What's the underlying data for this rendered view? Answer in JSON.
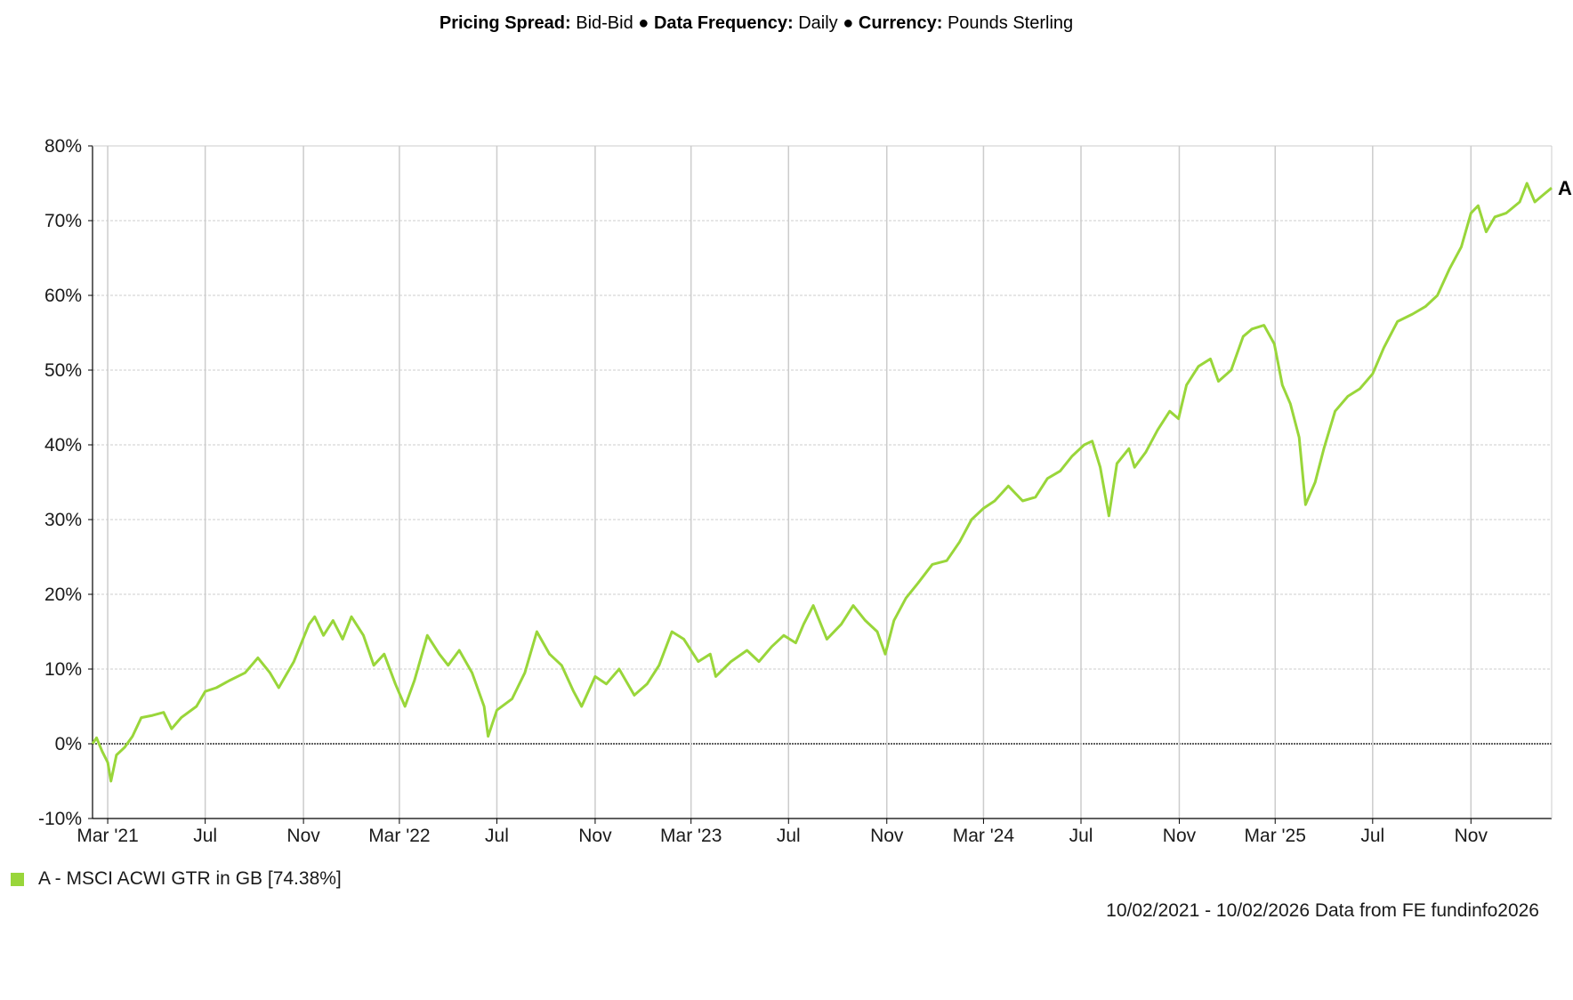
{
  "header": {
    "pricing_spread_label": "Pricing Spread:",
    "pricing_spread_value": "Bid-Bid",
    "data_frequency_label": "Data Frequency:",
    "data_frequency_value": "Daily",
    "currency_label": "Currency:",
    "currency_value": "Pounds Sterling",
    "separator": "●"
  },
  "legend": {
    "text": "A - MSCI ACWI GTR in GB [74.38%]"
  },
  "footer": {
    "text": "10/02/2021 - 10/02/2026 Data from FE fundinfo2026"
  },
  "colors": {
    "series": "#99d63a",
    "grid": "#cccccc",
    "zero_line": "#000000",
    "axis": "#000000"
  },
  "chart_data": {
    "type": "line",
    "title": "",
    "xlabel": "",
    "ylabel": "",
    "x_range": [
      "2021-02-10",
      "2026-02-10"
    ],
    "ylim": [
      -10,
      80
    ],
    "y_ticks": [
      80,
      70,
      60,
      50,
      40,
      30,
      20,
      10,
      0,
      -10
    ],
    "y_tick_labels": [
      "80%",
      "70%",
      "60%",
      "50%",
      "40%",
      "30%",
      "20%",
      "10%",
      "0%",
      "-10%"
    ],
    "x_ticks": [
      {
        "date": "2021-03-01",
        "label": "Mar '21"
      },
      {
        "date": "2021-07-01",
        "label": "Jul"
      },
      {
        "date": "2021-11-01",
        "label": "Nov"
      },
      {
        "date": "2022-03-01",
        "label": "Mar '22"
      },
      {
        "date": "2022-07-01",
        "label": "Jul"
      },
      {
        "date": "2022-11-01",
        "label": "Nov"
      },
      {
        "date": "2023-03-01",
        "label": "Mar '23"
      },
      {
        "date": "2023-07-01",
        "label": "Jul"
      },
      {
        "date": "2023-11-01",
        "label": "Nov"
      },
      {
        "date": "2024-03-01",
        "label": "Mar '24"
      },
      {
        "date": "2024-07-01",
        "label": "Jul"
      },
      {
        "date": "2024-11-01",
        "label": "Nov"
      },
      {
        "date": "2025-03-01",
        "label": "Mar '25"
      },
      {
        "date": "2025-07-01",
        "label": "Jul"
      },
      {
        "date": "2025-11-01",
        "label": "Nov"
      }
    ],
    "grid": true,
    "legend_position": "bottom-left",
    "series": [
      {
        "name": "A - MSCI ACWI GTR in GB [74.38%]",
        "end_label": "A",
        "color": "#99d63a",
        "points": [
          [
            "2021-02-10",
            0.0
          ],
          [
            "2021-02-15",
            0.8
          ],
          [
            "2021-02-22",
            -1.0
          ],
          [
            "2021-03-01",
            -2.5
          ],
          [
            "2021-03-05",
            -5.0
          ],
          [
            "2021-03-12",
            -1.5
          ],
          [
            "2021-03-22",
            -0.5
          ],
          [
            "2021-04-01",
            1.0
          ],
          [
            "2021-04-12",
            3.5
          ],
          [
            "2021-04-26",
            3.8
          ],
          [
            "2021-05-10",
            4.2
          ],
          [
            "2021-05-20",
            2.0
          ],
          [
            "2021-06-01",
            3.5
          ],
          [
            "2021-06-20",
            5.0
          ],
          [
            "2021-07-01",
            7.0
          ],
          [
            "2021-07-15",
            7.5
          ],
          [
            "2021-08-01",
            8.5
          ],
          [
            "2021-08-20",
            9.5
          ],
          [
            "2021-09-05",
            11.5
          ],
          [
            "2021-09-20",
            9.5
          ],
          [
            "2021-10-01",
            7.5
          ],
          [
            "2021-10-20",
            11.0
          ],
          [
            "2021-11-08",
            16.0
          ],
          [
            "2021-11-15",
            17.0
          ],
          [
            "2021-11-26",
            14.5
          ],
          [
            "2021-12-08",
            16.5
          ],
          [
            "2021-12-20",
            14.0
          ],
          [
            "2021-12-31",
            17.0
          ],
          [
            "2022-01-15",
            14.5
          ],
          [
            "2022-01-28",
            10.5
          ],
          [
            "2022-02-10",
            12.0
          ],
          [
            "2022-02-24",
            8.0
          ],
          [
            "2022-03-08",
            5.0
          ],
          [
            "2022-03-20",
            8.5
          ],
          [
            "2022-04-05",
            14.5
          ],
          [
            "2022-04-20",
            12.0
          ],
          [
            "2022-05-01",
            10.5
          ],
          [
            "2022-05-15",
            12.5
          ],
          [
            "2022-05-31",
            9.5
          ],
          [
            "2022-06-15",
            5.0
          ],
          [
            "2022-06-20",
            1.0
          ],
          [
            "2022-07-01",
            4.5
          ],
          [
            "2022-07-20",
            6.0
          ],
          [
            "2022-08-05",
            9.5
          ],
          [
            "2022-08-20",
            15.0
          ],
          [
            "2022-09-05",
            12.0
          ],
          [
            "2022-09-20",
            10.5
          ],
          [
            "2022-10-05",
            7.0
          ],
          [
            "2022-10-15",
            5.0
          ],
          [
            "2022-11-01",
            9.0
          ],
          [
            "2022-11-15",
            8.0
          ],
          [
            "2022-12-01",
            10.0
          ],
          [
            "2022-12-20",
            6.5
          ],
          [
            "2023-01-05",
            8.0
          ],
          [
            "2023-01-20",
            10.5
          ],
          [
            "2023-02-05",
            15.0
          ],
          [
            "2023-02-20",
            14.0
          ],
          [
            "2023-03-10",
            11.0
          ],
          [
            "2023-03-25",
            12.0
          ],
          [
            "2023-04-01",
            9.0
          ],
          [
            "2023-04-20",
            11.0
          ],
          [
            "2023-05-10",
            12.5
          ],
          [
            "2023-05-25",
            11.0
          ],
          [
            "2023-06-10",
            13.0
          ],
          [
            "2023-06-25",
            14.5
          ],
          [
            "2023-07-10",
            13.5
          ],
          [
            "2023-07-20",
            16.0
          ],
          [
            "2023-08-01",
            18.5
          ],
          [
            "2023-08-18",
            14.0
          ],
          [
            "2023-09-05",
            16.0
          ],
          [
            "2023-09-20",
            18.5
          ],
          [
            "2023-10-05",
            16.5
          ],
          [
            "2023-10-20",
            15.0
          ],
          [
            "2023-10-30",
            12.0
          ],
          [
            "2023-11-10",
            16.5
          ],
          [
            "2023-11-25",
            19.5
          ],
          [
            "2023-12-10",
            21.5
          ],
          [
            "2023-12-28",
            24.0
          ],
          [
            "2024-01-15",
            24.5
          ],
          [
            "2024-01-31",
            27.0
          ],
          [
            "2024-02-15",
            30.0
          ],
          [
            "2024-03-01",
            31.5
          ],
          [
            "2024-03-15",
            32.5
          ],
          [
            "2024-04-01",
            34.5
          ],
          [
            "2024-04-19",
            32.5
          ],
          [
            "2024-05-05",
            33.0
          ],
          [
            "2024-05-20",
            35.5
          ],
          [
            "2024-06-05",
            36.5
          ],
          [
            "2024-06-20",
            38.5
          ],
          [
            "2024-07-05",
            40.0
          ],
          [
            "2024-07-15",
            40.5
          ],
          [
            "2024-07-25",
            37.0
          ],
          [
            "2024-08-05",
            30.5
          ],
          [
            "2024-08-15",
            37.5
          ],
          [
            "2024-08-30",
            39.5
          ],
          [
            "2024-09-06",
            37.0
          ],
          [
            "2024-09-20",
            39.0
          ],
          [
            "2024-10-05",
            42.0
          ],
          [
            "2024-10-20",
            44.5
          ],
          [
            "2024-10-31",
            43.5
          ],
          [
            "2024-11-10",
            48.0
          ],
          [
            "2024-11-25",
            50.5
          ],
          [
            "2024-12-10",
            51.5
          ],
          [
            "2024-12-20",
            48.5
          ],
          [
            "2025-01-05",
            50.0
          ],
          [
            "2025-01-20",
            54.5
          ],
          [
            "2025-01-31",
            55.5
          ],
          [
            "2025-02-15",
            56.0
          ],
          [
            "2025-02-28",
            53.5
          ],
          [
            "2025-03-10",
            48.0
          ],
          [
            "2025-03-20",
            45.5
          ],
          [
            "2025-03-31",
            41.0
          ],
          [
            "2025-04-08",
            32.0
          ],
          [
            "2025-04-20",
            35.0
          ],
          [
            "2025-05-01",
            39.5
          ],
          [
            "2025-05-15",
            44.5
          ],
          [
            "2025-05-31",
            46.5
          ],
          [
            "2025-06-15",
            47.5
          ],
          [
            "2025-07-01",
            49.5
          ],
          [
            "2025-07-15",
            53.0
          ],
          [
            "2025-08-01",
            56.5
          ],
          [
            "2025-08-20",
            57.5
          ],
          [
            "2025-09-05",
            58.5
          ],
          [
            "2025-09-20",
            60.0
          ],
          [
            "2025-10-05",
            63.5
          ],
          [
            "2025-10-20",
            66.5
          ],
          [
            "2025-11-01",
            71.0
          ],
          [
            "2025-11-10",
            72.0
          ],
          [
            "2025-11-20",
            68.5
          ],
          [
            "2025-12-01",
            70.5
          ],
          [
            "2025-12-15",
            71.0
          ],
          [
            "2026-01-01",
            72.5
          ],
          [
            "2026-01-10",
            75.0
          ],
          [
            "2026-01-20",
            72.5
          ],
          [
            "2026-01-31",
            73.5
          ],
          [
            "2026-02-10",
            74.38
          ]
        ]
      }
    ]
  }
}
